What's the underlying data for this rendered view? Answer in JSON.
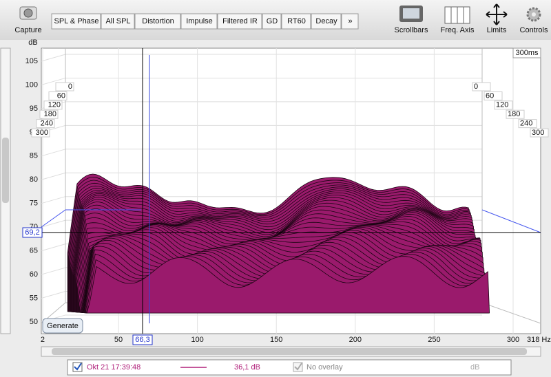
{
  "toolbar": {
    "capture": "Capture",
    "tabs": [
      "SPL & Phase",
      "All SPL",
      "Distortion",
      "Impulse",
      "Filtered IR",
      "GD",
      "RT60",
      "Decay",
      "»"
    ],
    "tools": [
      "Scrollbars",
      "Freq. Axis",
      "Limits",
      "Controls"
    ]
  },
  "graph": {
    "y_unit": "dB",
    "yticks": [
      105,
      100,
      95,
      90,
      85,
      80,
      75,
      70,
      65,
      60,
      55,
      50
    ],
    "xticks": [
      2,
      50,
      100,
      150,
      200,
      250,
      300
    ],
    "x_end_label": "318 Hz",
    "time_labels": [
      0,
      60,
      120,
      180,
      240,
      300
    ],
    "time_span": "300ms",
    "cursor_y": "69,2",
    "cursor_x": "66,3",
    "generate": "Generate"
  },
  "legend": {
    "date": "Okt 21 17:39:48",
    "level": "36,1 dB",
    "overlay": "No overlay",
    "unit": "dB"
  }
}
